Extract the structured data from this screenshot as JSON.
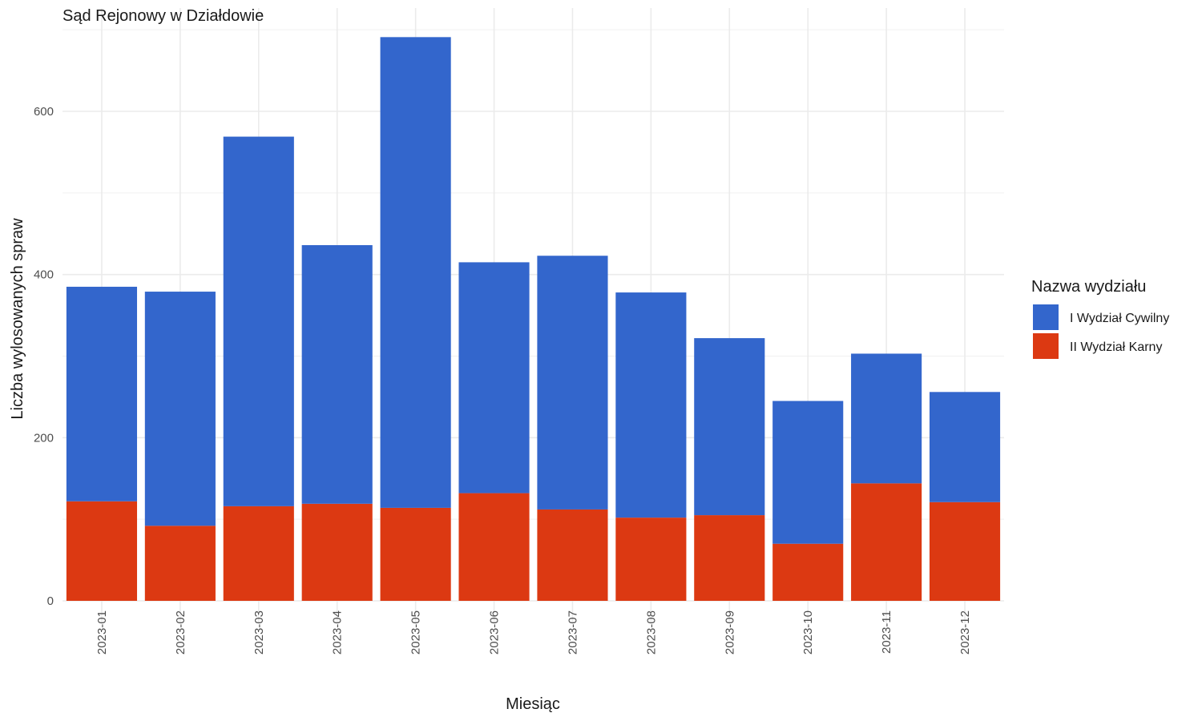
{
  "chart_data": {
    "type": "bar",
    "stacked": true,
    "title": "Sąd Rejonowy w Działdowie",
    "xlabel": "Miesiąc",
    "ylabel": "Liczba wylosowanych spraw",
    "ylim": [
      0,
      700
    ],
    "yticks": [
      0,
      200,
      400,
      600
    ],
    "grid": true,
    "categories": [
      "2023-01",
      "2023-02",
      "2023-03",
      "2023-04",
      "2023-05",
      "2023-06",
      "2023-07",
      "2023-08",
      "2023-09",
      "2023-10",
      "2023-11",
      "2023-12"
    ],
    "legend": {
      "title": "Nazwa wydziału",
      "position": "right"
    },
    "series": [
      {
        "name": "II Wydział Karny",
        "color": "#DC3912",
        "values": [
          122,
          92,
          116,
          119,
          114,
          132,
          112,
          102,
          105,
          70,
          144,
          121
        ]
      },
      {
        "name": "I Wydział Cywilny",
        "color": "#3366CC",
        "values": [
          263,
          287,
          453,
          317,
          577,
          283,
          311,
          276,
          217,
          175,
          159,
          135
        ]
      }
    ]
  }
}
